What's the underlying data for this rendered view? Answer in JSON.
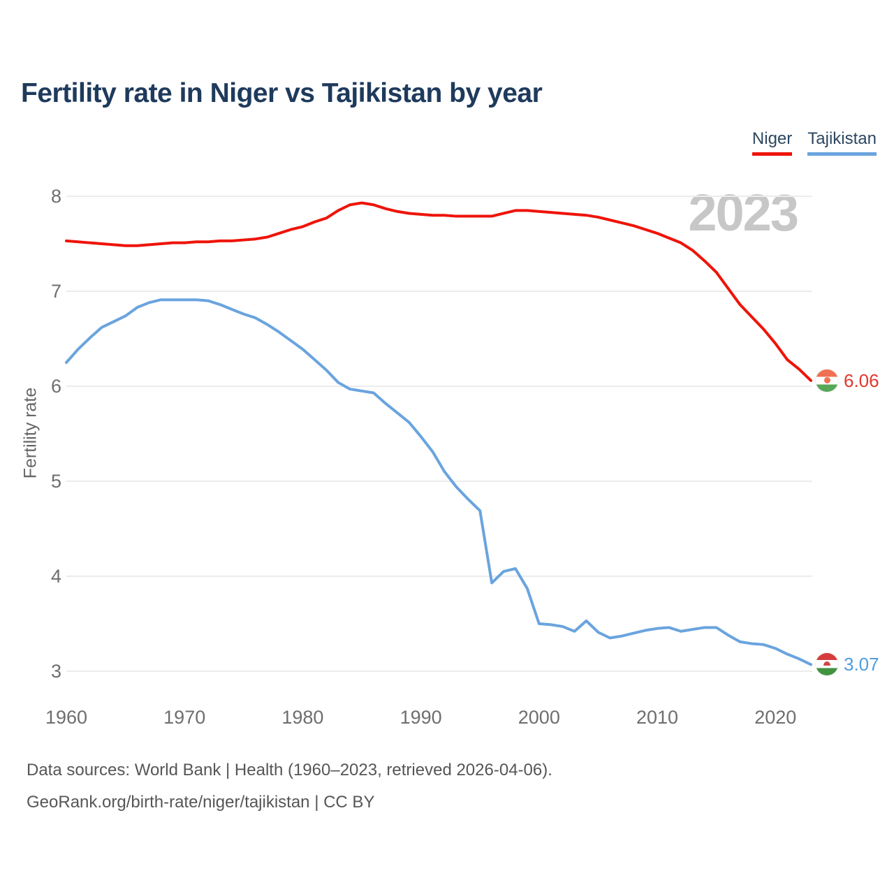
{
  "title": "Fertility rate in Niger vs Tajikistan by year",
  "watermark": "2023",
  "legend": [
    {
      "label": "Niger",
      "color": "#ee1409"
    },
    {
      "label": "Tajikistan",
      "color": "#6aa4de"
    }
  ],
  "y_axis": {
    "label": "Fertility rate",
    "ticks": [
      "8",
      "7",
      "6",
      "5",
      "4",
      "3"
    ]
  },
  "x_axis": {
    "ticks": [
      "1960",
      "1970",
      "1980",
      "1990",
      "2000",
      "2010",
      "2020"
    ]
  },
  "end_labels": [
    {
      "series": "Niger",
      "value": "6.06",
      "color": "#e2382c",
      "icon": "niger-flag-icon"
    },
    {
      "series": "Tajikistan",
      "value": "3.07",
      "color": "#4f9ddb",
      "icon": "tajikistan-flag-icon"
    }
  ],
  "footer": {
    "line1": "Data sources: World Bank | Health (1960–2023, retrieved 2026-04-06).",
    "line2": "GeoRank.org/birth-rate/niger/tajikistan | CC BY"
  },
  "chart_data": {
    "type": "line",
    "title": "Fertility rate in Niger vs Tajikistan by year",
    "xlabel": "",
    "ylabel": "Fertility rate",
    "xlim": [
      1960,
      2023
    ],
    "ylim": [
      3,
      8
    ],
    "grid": "horizontal-only",
    "legend_position": "top-right",
    "x": [
      1960,
      1961,
      1962,
      1963,
      1964,
      1965,
      1966,
      1967,
      1968,
      1969,
      1970,
      1971,
      1972,
      1973,
      1974,
      1975,
      1976,
      1977,
      1978,
      1979,
      1980,
      1981,
      1982,
      1983,
      1984,
      1985,
      1986,
      1987,
      1988,
      1989,
      1990,
      1991,
      1992,
      1993,
      1994,
      1995,
      1996,
      1997,
      1998,
      1999,
      2000,
      2001,
      2002,
      2003,
      2004,
      2005,
      2006,
      2007,
      2008,
      2009,
      2010,
      2011,
      2012,
      2013,
      2014,
      2015,
      2016,
      2017,
      2018,
      2019,
      2020,
      2021,
      2022,
      2023
    ],
    "series": [
      {
        "name": "Niger",
        "color": "#ee1409",
        "final_value": 6.06,
        "values": [
          7.53,
          7.52,
          7.51,
          7.5,
          7.49,
          7.48,
          7.48,
          7.49,
          7.5,
          7.51,
          7.51,
          7.52,
          7.52,
          7.53,
          7.53,
          7.54,
          7.55,
          7.57,
          7.61,
          7.65,
          7.68,
          7.73,
          7.77,
          7.85,
          7.91,
          7.93,
          7.91,
          7.87,
          7.84,
          7.82,
          7.81,
          7.8,
          7.8,
          7.79,
          7.79,
          7.79,
          7.79,
          7.82,
          7.85,
          7.85,
          7.84,
          7.83,
          7.82,
          7.81,
          7.8,
          7.78,
          7.75,
          7.72,
          7.69,
          7.65,
          7.61,
          7.56,
          7.51,
          7.43,
          7.32,
          7.2,
          7.03,
          6.86,
          6.73,
          6.6,
          6.45,
          6.28,
          6.18,
          6.06
        ]
      },
      {
        "name": "Tajikistan",
        "color": "#6aa4de",
        "final_value": 3.07,
        "values": [
          6.25,
          6.39,
          6.51,
          6.62,
          6.68,
          6.74,
          6.83,
          6.88,
          6.91,
          6.91,
          6.91,
          6.91,
          6.9,
          6.86,
          6.81,
          6.76,
          6.72,
          6.65,
          6.57,
          6.48,
          6.39,
          6.28,
          6.17,
          6.04,
          5.97,
          5.95,
          5.93,
          5.82,
          5.72,
          5.62,
          5.47,
          5.31,
          5.1,
          4.94,
          4.81,
          4.69,
          3.93,
          4.05,
          4.08,
          3.87,
          3.5,
          3.49,
          3.47,
          3.42,
          3.53,
          3.41,
          3.35,
          3.37,
          3.4,
          3.43,
          3.45,
          3.46,
          3.42,
          3.44,
          3.46,
          3.46,
          3.38,
          3.31,
          3.29,
          3.28,
          3.24,
          3.18,
          3.13,
          3.07
        ]
      }
    ]
  }
}
